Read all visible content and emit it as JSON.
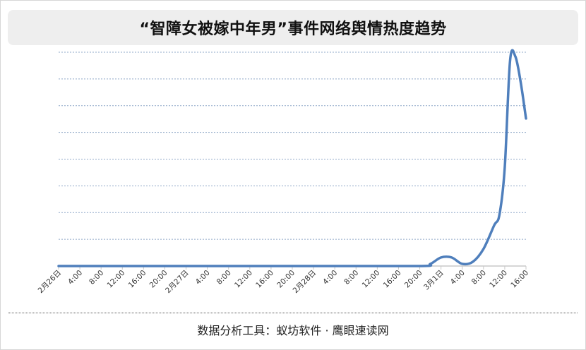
{
  "title": "“智障女被嫁中年男”事件网络舆情热度趋势",
  "footer": "数据分析工具：蚁坊软件 · 鹰眼速读网",
  "chart_data": {
    "type": "line",
    "title": "“智障女被嫁中年男”事件网络舆情热度趋势",
    "xlabel": "",
    "ylabel": "",
    "grid": true,
    "legend": "none",
    "line_color": "#4f7fbc",
    "ylim": [
      0,
      100
    ],
    "x_tick_labels": [
      "2月26日",
      "4:00",
      "8:00",
      "12:00",
      "16:00",
      "20:00",
      "2月27日",
      "4:00",
      "8:00",
      "12:00",
      "16:00",
      "20:00",
      "2月28日",
      "4:00",
      "8:00",
      "12:00",
      "16:00",
      "20:00",
      "3月1日",
      "4:00",
      "8:00",
      "12:00",
      "16:00"
    ],
    "series": [
      {
        "x": [
          "2月26日 0:00",
          "2月27日 0:00",
          "2月28日 0:00",
          "2月28日 20:00",
          "2月28日 22:00",
          "3月1日 0:00",
          "3月1日 2:00",
          "3月1日 4:00",
          "3月1日 6:00",
          "3月1日 8:00",
          "3月1日 10:00",
          "3月1日 11:00",
          "3月1日 12:00",
          "3月1日 13:00",
          "3月1日 14:00",
          "3月1日 15:00",
          "3月1日 16:00"
        ],
        "values": [
          0,
          0,
          0,
          0,
          1,
          4,
          4,
          1,
          2,
          8,
          19,
          24,
          46,
          96,
          98,
          86,
          69
        ]
      }
    ]
  }
}
